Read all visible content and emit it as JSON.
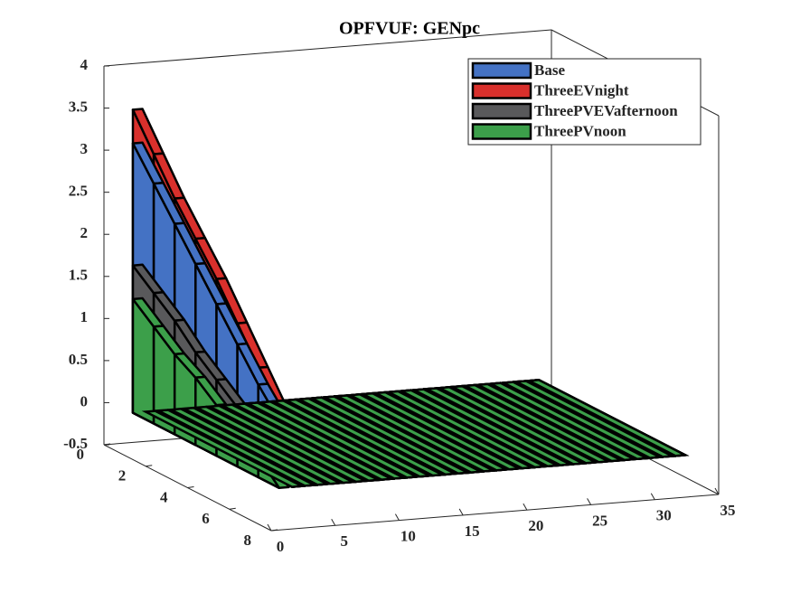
{
  "chart_data": {
    "type": "ribbon3d",
    "title": "OPFVUF: GENpc",
    "xlim": [
      0,
      35
    ],
    "xticks": [
      0,
      5,
      10,
      15,
      20,
      25,
      30,
      35
    ],
    "ylim": [
      0,
      8
    ],
    "yticks": [
      0,
      2,
      4,
      6,
      8
    ],
    "zlim": [
      -0.5,
      4
    ],
    "zticks": [
      -0.5,
      0,
      0.5,
      1,
      1.5,
      2,
      2.5,
      3,
      3.5,
      4
    ],
    "ribbon_x": [
      1,
      2,
      3,
      4,
      5,
      6,
      7,
      8,
      9,
      10,
      11,
      12,
      13,
      14,
      15,
      16,
      17,
      18,
      19,
      20,
      21,
      22,
      23,
      24,
      25,
      26,
      27,
      28,
      29,
      30,
      31,
      32
    ],
    "ribbon_y": [
      1,
      2,
      3,
      4,
      5,
      6,
      7,
      8
    ],
    "flat_value": 0,
    "legend": "northeast",
    "series": [
      {
        "name": "Base",
        "color": "#4472c4",
        "values": [
          3.2,
          2.85,
          2.5,
          2.15,
          1.8,
          1.45,
          1.1,
          0.8
        ]
      },
      {
        "name": "ThreeEVnight",
        "color": "#d9302c",
        "values": [
          3.6,
          3.2,
          2.8,
          2.45,
          2.1,
          1.7,
          1.3,
          0.9
        ]
      },
      {
        "name": "ThreePVEVafternoon",
        "color": "#59595b",
        "values": [
          1.75,
          1.55,
          1.35,
          1.1,
          0.9,
          0.7,
          0.5,
          0.3
        ]
      },
      {
        "name": "ThreePVnoon",
        "color": "#3c9f4a",
        "values": [
          1.35,
          1.15,
          0.95,
          0.8,
          0.6,
          0.4,
          0.25,
          0.0
        ]
      }
    ]
  }
}
